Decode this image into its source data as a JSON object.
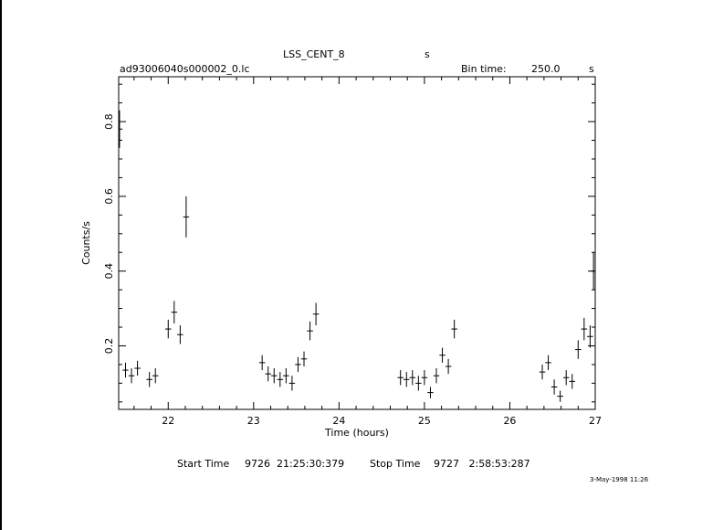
{
  "header": {
    "object_name": "LSS_CENT_8",
    "object_unit": "s",
    "file_name": "ad93006040s000002_0.lc",
    "bin_time_label": "Bin time:",
    "bin_time_value": "250.0",
    "bin_time_unit": "s"
  },
  "footer": {
    "start_label": "Start Time",
    "start_value": "9726  21:25:30:379",
    "stop_label": "Stop Time",
    "stop_value": "9727   2:58:53:287",
    "date_stamp": "3-May-1998 11:26"
  },
  "chart_data": {
    "type": "scatter",
    "xlabel": "Time (hours)",
    "ylabel": "Counts/s",
    "xlim": [
      21.42,
      27.0
    ],
    "ylim": [
      0.03,
      0.92
    ],
    "x_ticks": [
      22,
      23,
      24,
      25,
      26,
      27
    ],
    "y_ticks": [
      0.2,
      0.4,
      0.6,
      0.8
    ],
    "x_tick_labels": [
      "22",
      "23",
      "24",
      "25",
      "26",
      "27"
    ],
    "y_tick_labels": [
      "0.2",
      "0.4",
      "0.6",
      "0.8"
    ],
    "x_half_width": 0.0347,
    "points": [
      {
        "x": 21.43,
        "y": 0.78,
        "err": 0.05
      },
      {
        "x": 21.5,
        "y": 0.135,
        "err": 0.02
      },
      {
        "x": 21.57,
        "y": 0.12,
        "err": 0.02
      },
      {
        "x": 21.64,
        "y": 0.14,
        "err": 0.02
      },
      {
        "x": 21.78,
        "y": 0.11,
        "err": 0.02
      },
      {
        "x": 21.85,
        "y": 0.12,
        "err": 0.02
      },
      {
        "x": 22.0,
        "y": 0.245,
        "err": 0.025
      },
      {
        "x": 22.07,
        "y": 0.29,
        "err": 0.03
      },
      {
        "x": 22.14,
        "y": 0.23,
        "err": 0.025
      },
      {
        "x": 22.21,
        "y": 0.545,
        "err": 0.055
      },
      {
        "x": 23.1,
        "y": 0.155,
        "err": 0.02
      },
      {
        "x": 23.17,
        "y": 0.125,
        "err": 0.02
      },
      {
        "x": 23.24,
        "y": 0.12,
        "err": 0.02
      },
      {
        "x": 23.31,
        "y": 0.11,
        "err": 0.02
      },
      {
        "x": 23.38,
        "y": 0.12,
        "err": 0.02
      },
      {
        "x": 23.45,
        "y": 0.1,
        "err": 0.02
      },
      {
        "x": 23.52,
        "y": 0.15,
        "err": 0.02
      },
      {
        "x": 23.59,
        "y": 0.165,
        "err": 0.02
      },
      {
        "x": 23.66,
        "y": 0.24,
        "err": 0.025
      },
      {
        "x": 23.73,
        "y": 0.285,
        "err": 0.03
      },
      {
        "x": 24.72,
        "y": 0.115,
        "err": 0.02
      },
      {
        "x": 24.79,
        "y": 0.11,
        "err": 0.02
      },
      {
        "x": 24.86,
        "y": 0.115,
        "err": 0.02
      },
      {
        "x": 24.93,
        "y": 0.1,
        "err": 0.02
      },
      {
        "x": 25.0,
        "y": 0.115,
        "err": 0.02
      },
      {
        "x": 25.07,
        "y": 0.075,
        "err": 0.015
      },
      {
        "x": 25.14,
        "y": 0.12,
        "err": 0.02
      },
      {
        "x": 25.21,
        "y": 0.175,
        "err": 0.02
      },
      {
        "x": 25.28,
        "y": 0.145,
        "err": 0.02
      },
      {
        "x": 25.35,
        "y": 0.245,
        "err": 0.025
      },
      {
        "x": 26.38,
        "y": 0.13,
        "err": 0.02
      },
      {
        "x": 26.45,
        "y": 0.155,
        "err": 0.02
      },
      {
        "x": 26.52,
        "y": 0.09,
        "err": 0.02
      },
      {
        "x": 26.59,
        "y": 0.065,
        "err": 0.015
      },
      {
        "x": 26.66,
        "y": 0.115,
        "err": 0.02
      },
      {
        "x": 26.73,
        "y": 0.105,
        "err": 0.02
      },
      {
        "x": 26.8,
        "y": 0.19,
        "err": 0.025
      },
      {
        "x": 26.87,
        "y": 0.245,
        "err": 0.03
      },
      {
        "x": 26.94,
        "y": 0.225,
        "err": 0.03
      },
      {
        "x": 26.98,
        "y": 0.4,
        "err": 0.05
      }
    ]
  }
}
